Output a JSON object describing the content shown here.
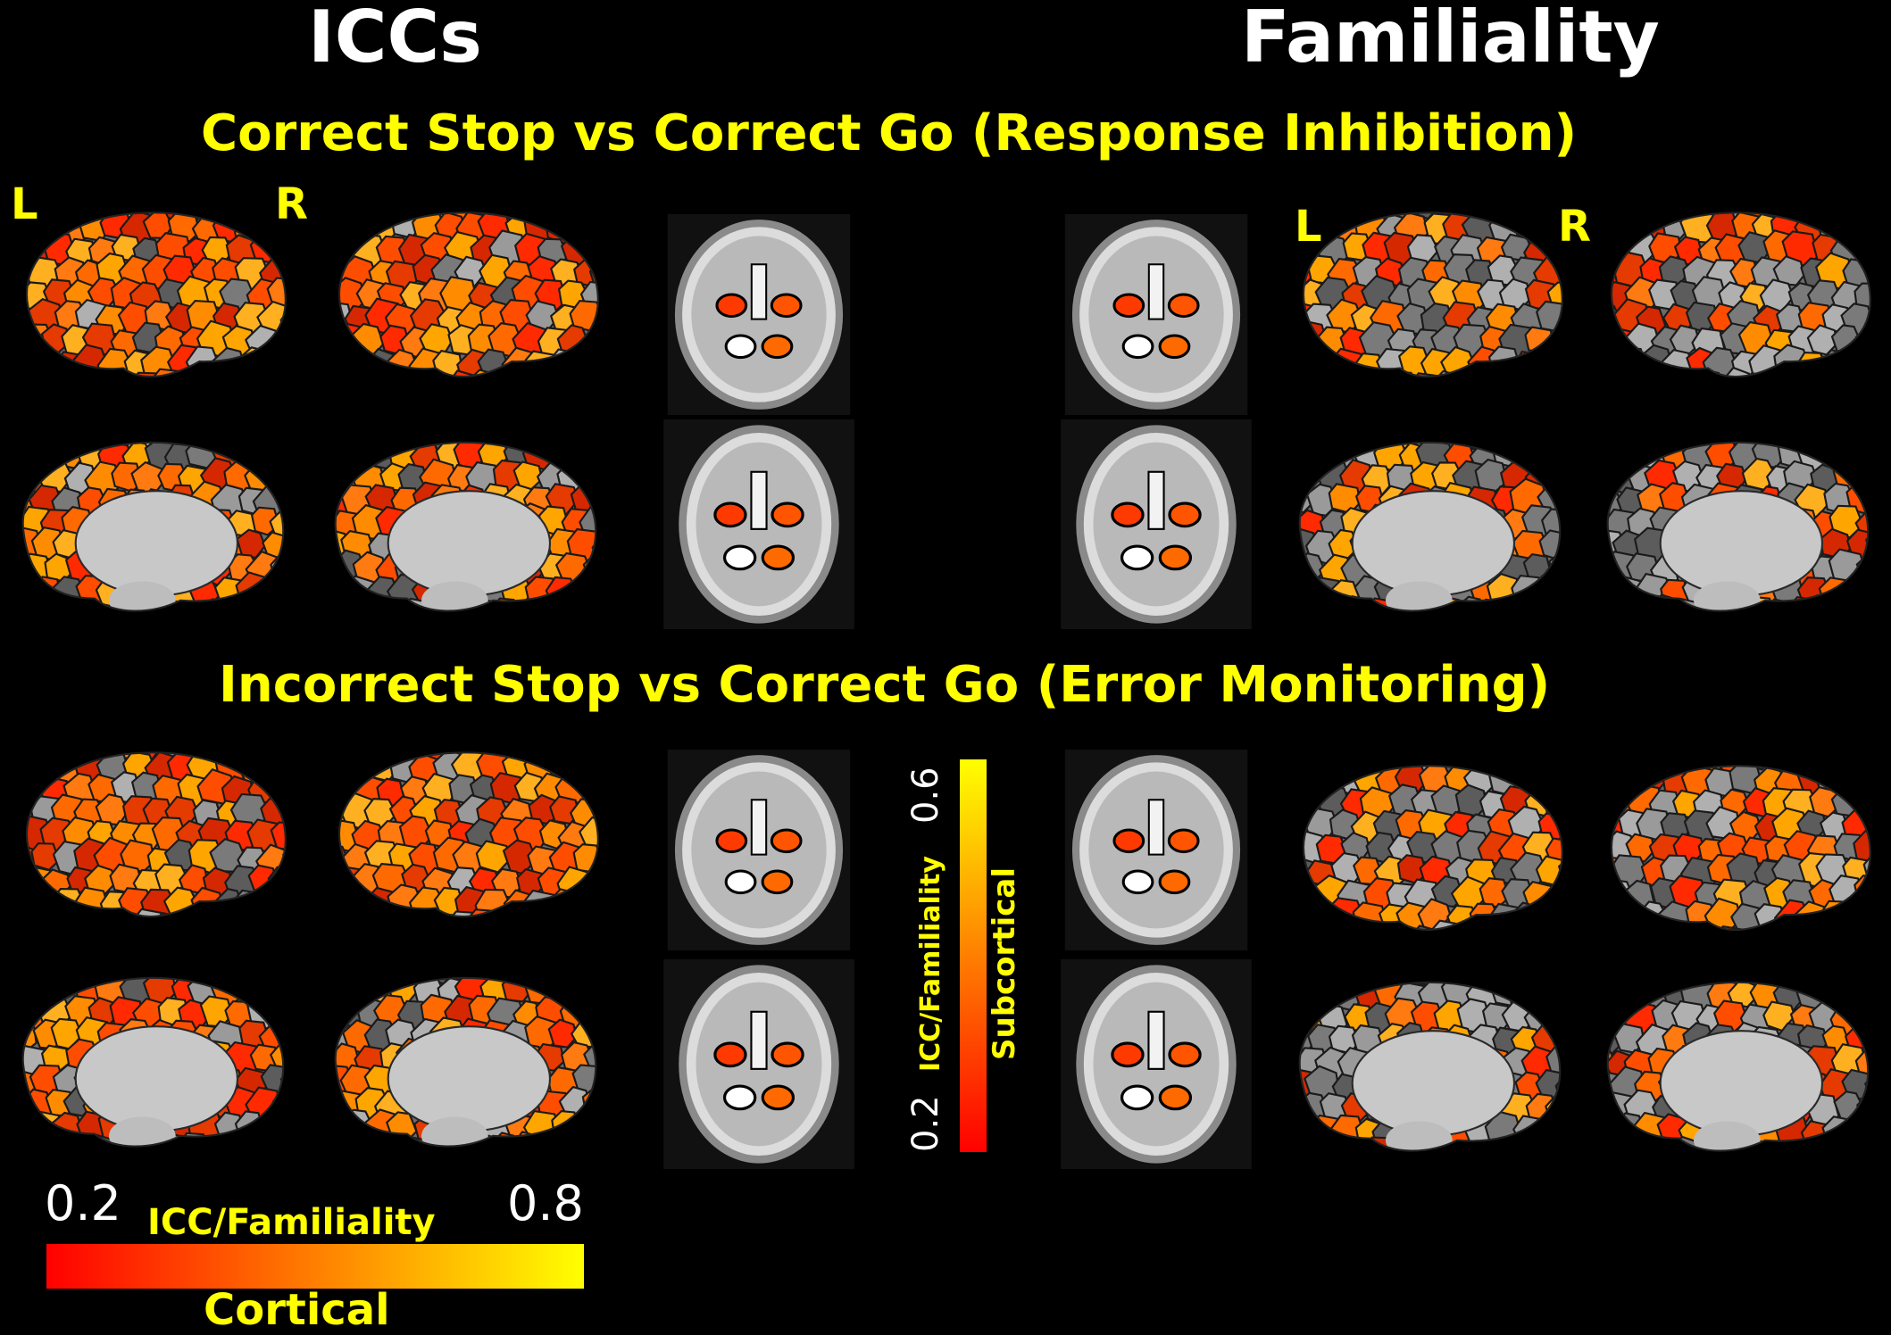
{
  "titles": {
    "left": "ICCs",
    "right": "Familiality"
  },
  "rows": [
    {
      "title": "Correct Stop vs Correct Go (Response Inhibition)"
    },
    {
      "title": "Incorrect Stop vs Correct Go (Error Monitoring)"
    }
  ],
  "hemisphere_labels": {
    "left": "L",
    "right": "R"
  },
  "cortical_colorbar": {
    "min_label": "0.2",
    "max_label": "0.8",
    "measure_label": "ICC/Familiality",
    "region_label": "Cortical",
    "colors": [
      "#ff0000",
      "#ff7f00",
      "#ffff00"
    ]
  },
  "subcortical_colorbar": {
    "min_label": "0.2",
    "max_label": "0.6",
    "measure_label": "ICC/Familiality",
    "region_label": "Subcortical",
    "colors": [
      "#ff0000",
      "#ff7f00",
      "#ffff00"
    ]
  }
}
